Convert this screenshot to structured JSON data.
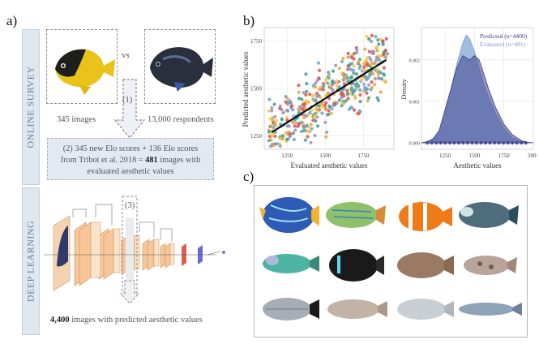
{
  "panel_a": {
    "letter": "a)",
    "online_label": "ONLINE SURVEY",
    "deep_label": "DEEP LEARNING",
    "vs": "vs",
    "step1": "(1)",
    "images": "345 images",
    "respondents": "13,000 respondents",
    "summary_line1": "(2) 345 new Elo scores + 136 Elo scores",
    "summary_line2_pre": "from Tribot et al. 2018 = ",
    "summary_bold": "481",
    "summary_line2_post": " images with",
    "summary_line3": "evaluated aesthetic values",
    "step3": "(3)",
    "result_bold": "4,400",
    "result_rest": " images with predicted aesthetic values"
  },
  "panel_b": {
    "letter": "b)",
    "scatter": {
      "xlabel": "Evaluated aesthetic values",
      "ylabel": "Predicted aesthetic values",
      "xticks": [
        "1250",
        "1500",
        "1750"
      ],
      "yticks": [
        "1250",
        "1500",
        "1750"
      ]
    },
    "density": {
      "xlabel": "Aesthetic values",
      "ylabel": "Density",
      "xticks": [
        "1250",
        "1500",
        "1750",
        "2000"
      ],
      "yticks": [
        "0.000",
        "0.001",
        "0.002"
      ],
      "legend_predicted": "Predicted (n=4400)",
      "legend_evaluated": "Evaluated (n=481)"
    }
  },
  "panel_c": {
    "letter": "c)"
  },
  "chart_data": [
    {
      "type": "scatter",
      "xlabel": "Evaluated aesthetic values",
      "ylabel": "Predicted aesthetic values",
      "xlim": [
        1100,
        1950
      ],
      "ylim": [
        1180,
        1820
      ],
      "n_points": 481,
      "fit_line": {
        "x": [
          1150,
          1900
        ],
        "y": [
          1270,
          1650
        ]
      },
      "colors": [
        "#e8a33a",
        "#d9534f",
        "#5aa9c9",
        "#3f9e8f",
        "#f0c94d",
        "#9b8fc8"
      ]
    },
    {
      "type": "area",
      "xlabel": "Aesthetic values",
      "ylabel": "Density",
      "xlim": [
        1050,
        2000
      ],
      "ylim": [
        0,
        0.0027
      ],
      "series": [
        {
          "name": "Predicted (n=4400)",
          "color": "#4a4e96",
          "x": [
            1050,
            1100,
            1150,
            1200,
            1250,
            1300,
            1350,
            1400,
            1430,
            1460,
            1500,
            1540,
            1575,
            1620,
            1680,
            1750,
            1820,
            1900,
            1950,
            2000
          ],
          "y": [
            0,
            3e-05,
            0.0001,
            0.0003,
            0.0008,
            0.0013,
            0.0018,
            0.0021,
            0.00205,
            0.002,
            0.0021,
            0.002,
            0.0017,
            0.0013,
            0.00085,
            0.00045,
            0.0002,
            5e-05,
            1e-05,
            0
          ]
        },
        {
          "name": "Evaluated (n=481)",
          "color": "#8fb0d8",
          "x": [
            1050,
            1100,
            1150,
            1200,
            1250,
            1300,
            1350,
            1400,
            1430,
            1460,
            1500,
            1540,
            1575,
            1620,
            1680,
            1750,
            1820,
            1900,
            1950,
            2000
          ],
          "y": [
            0,
            2e-05,
            8e-05,
            0.00025,
            0.0007,
            0.0013,
            0.0019,
            0.0024,
            0.0026,
            0.0025,
            0.0022,
            0.0018,
            0.00145,
            0.0011,
            0.0007,
            0.00035,
            0.00012,
            3e-05,
            1e-05,
            0
          ]
        }
      ]
    }
  ]
}
